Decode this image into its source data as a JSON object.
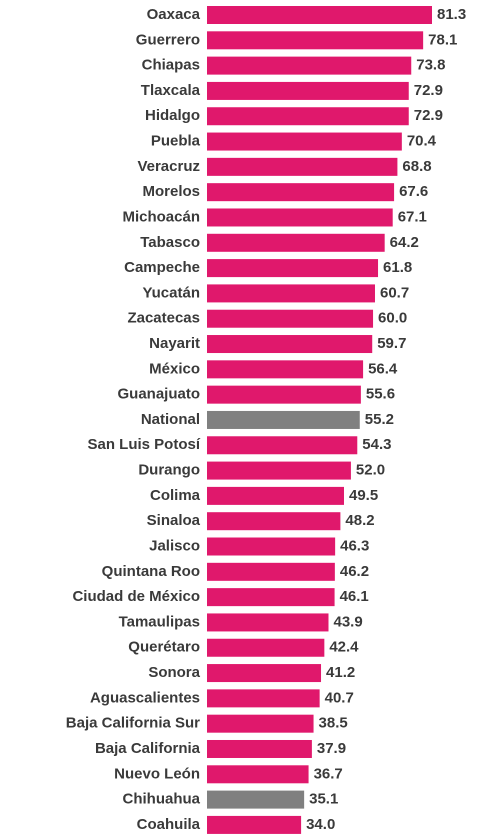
{
  "chart_data": {
    "type": "barh",
    "categories": [
      "Oaxaca",
      "Guerrero",
      "Chiapas",
      "Tlaxcala",
      "Hidalgo",
      "Puebla",
      "Veracruz",
      "Morelos",
      "Michoacán",
      "Tabasco",
      "Campeche",
      "Yucatán",
      "Zacatecas",
      "Nayarit",
      "México",
      "Guanajuato",
      "National",
      "San Luis Potosí",
      "Durango",
      "Colima",
      "Sinaloa",
      "Jalisco",
      "Quintana Roo",
      "Ciudad de México",
      "Tamaulipas",
      "Querétaro",
      "Sonora",
      "Aguascalientes",
      "Baja California Sur",
      "Baja California",
      "Nuevo León",
      "Chihuahua",
      "Coahuila"
    ],
    "values": [
      81.3,
      78.1,
      73.8,
      72.9,
      72.9,
      70.4,
      68.8,
      67.6,
      67.1,
      64.2,
      61.8,
      60.7,
      60,
      59.7,
      56.4,
      55.6,
      55.2,
      54.3,
      52,
      49.5,
      48.2,
      46.3,
      46.2,
      46.1,
      43.9,
      42.4,
      41.2,
      40.7,
      38.5,
      37.9,
      36.7,
      35.1,
      34
    ],
    "value_labels": [
      "81.3",
      "78.1",
      "73.8",
      "72.9",
      "72.9",
      "70.4",
      "68.8",
      "67.6",
      "67.1",
      "64.2",
      "61.8",
      "60.7",
      "60.0",
      "59.7",
      "56.4",
      "55.6",
      "55.2",
      "54.3",
      "52.0",
      "49.5",
      "48.2",
      "46.3",
      "46.2",
      "46.1",
      "43.9",
      "42.4",
      "41.2",
      "40.7",
      "38.5",
      "37.9",
      "36.7",
      "35.1",
      "34.0"
    ],
    "colors": [
      "#e0186c",
      "#e0186c",
      "#e0186c",
      "#e0186c",
      "#e0186c",
      "#e0186c",
      "#e0186c",
      "#e0186c",
      "#e0186c",
      "#e0186c",
      "#e0186c",
      "#e0186c",
      "#e0186c",
      "#e0186c",
      "#e0186c",
      "#e0186c",
      "#808080",
      "#e0186c",
      "#e0186c",
      "#e0186c",
      "#e0186c",
      "#e0186c",
      "#e0186c",
      "#e0186c",
      "#e0186c",
      "#e0186c",
      "#e0186c",
      "#e0186c",
      "#e0186c",
      "#e0186c",
      "#e0186c",
      "#808080",
      "#e0186c"
    ]
  }
}
